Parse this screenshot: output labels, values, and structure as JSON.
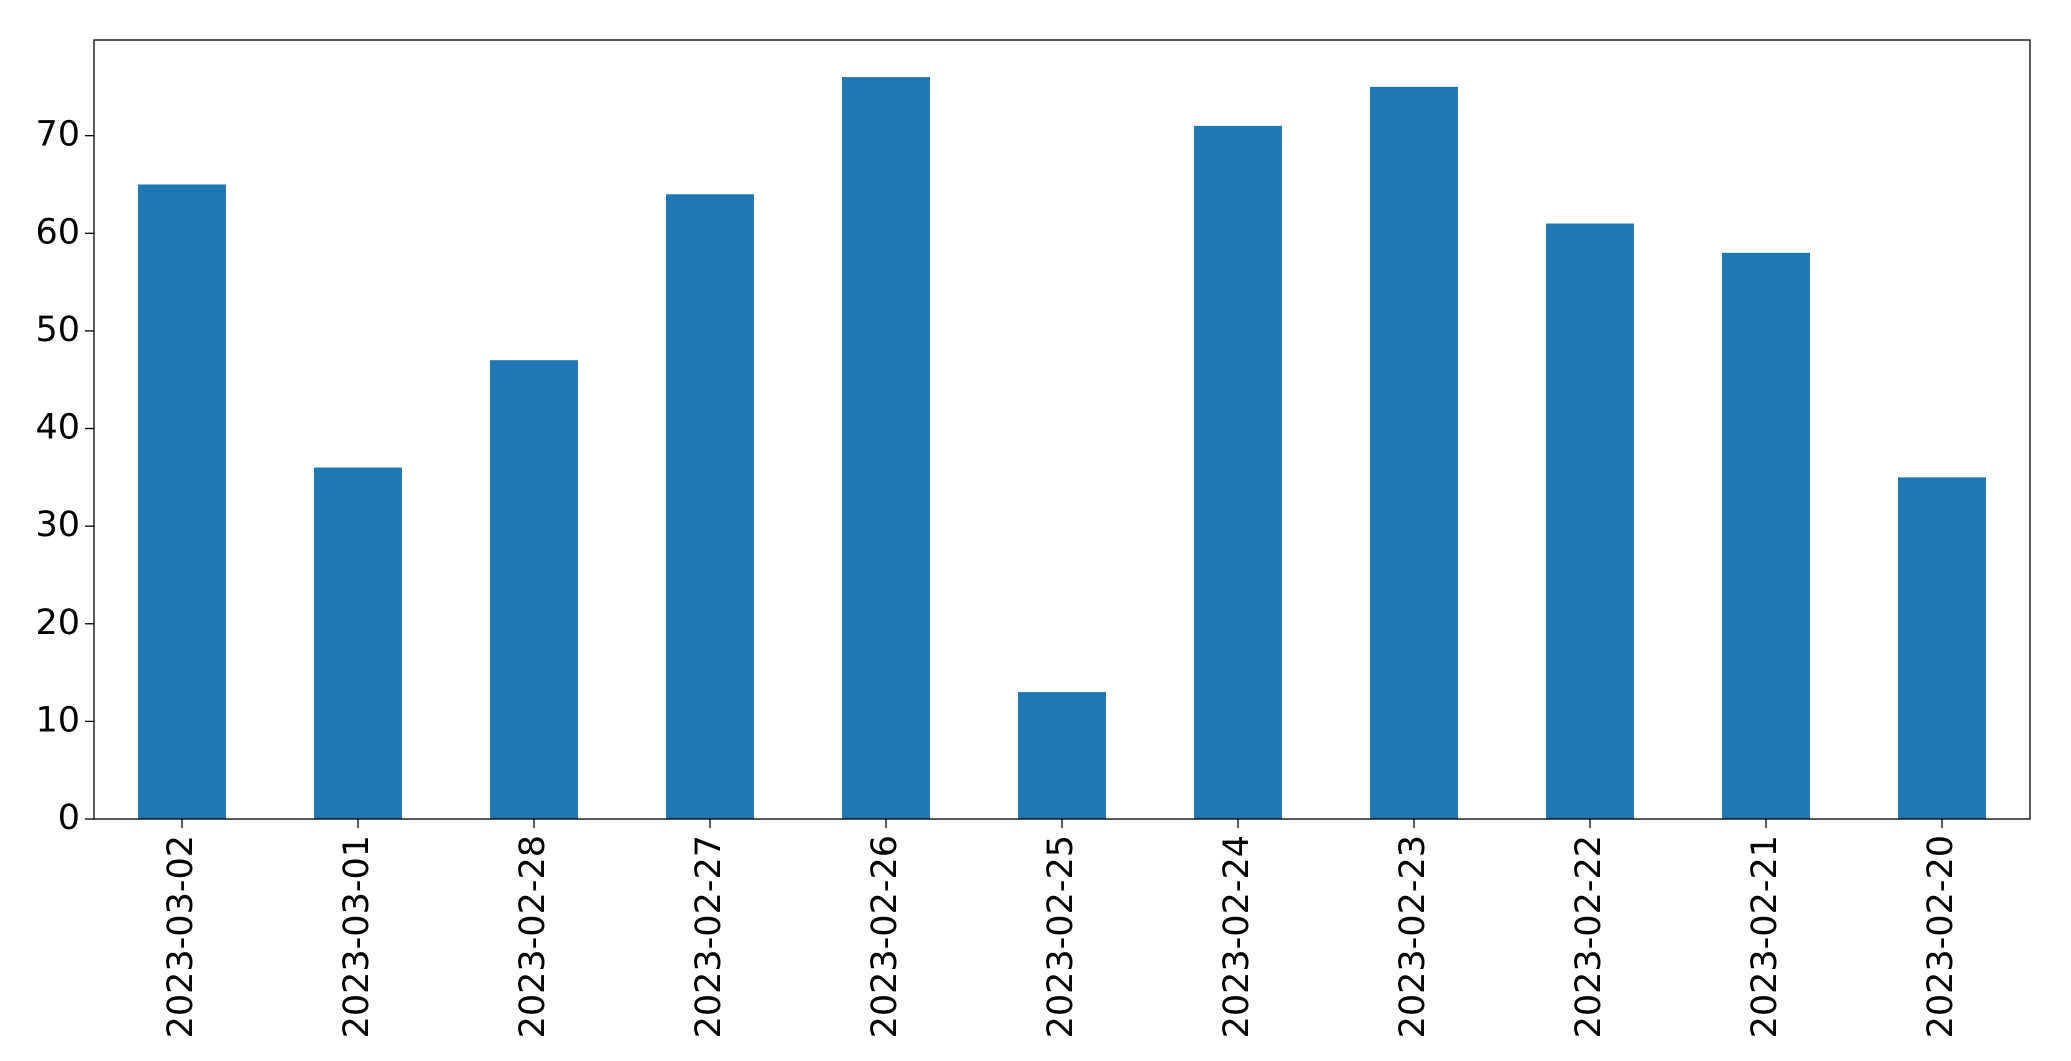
{
  "chart_data": {
    "type": "bar",
    "categories": [
      "2023-03-02",
      "2023-03-01",
      "2023-02-28",
      "2023-02-27",
      "2023-02-26",
      "2023-02-25",
      "2023-02-24",
      "2023-02-23",
      "2023-02-22",
      "2023-02-21",
      "2023-02-20"
    ],
    "values": [
      65,
      36,
      47,
      64,
      76,
      13,
      71,
      75,
      61,
      58,
      35
    ],
    "color": "#1f77b4",
    "ylim": [
      0,
      79.8
    ],
    "yticks": [
      0,
      10,
      20,
      30,
      40,
      50,
      60,
      70
    ],
    "grid": false
  }
}
